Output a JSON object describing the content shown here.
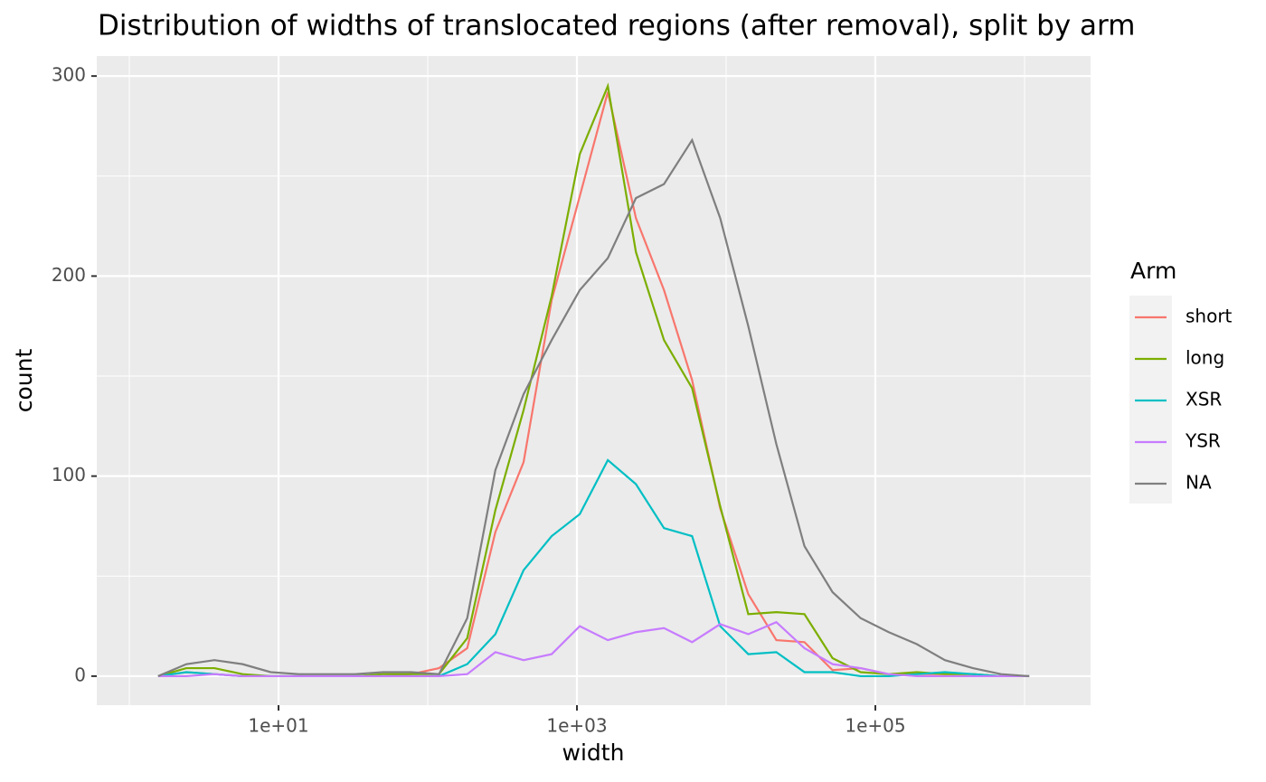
{
  "chart_data": {
    "type": "line",
    "title": "Distribution of widths of translocated regions (after removal), split by arm",
    "x_label": "width",
    "y_label": "count",
    "legend_title": "Arm",
    "xscale": "log",
    "grid": true,
    "xlim": [
      0.605,
      2770000
    ],
    "ylim": [
      -14.5,
      310
    ],
    "xticks": [
      {
        "value": 10,
        "label": "1e+01"
      },
      {
        "value": 1000,
        "label": "1e+03"
      },
      {
        "value": 100000,
        "label": "1e+05"
      }
    ],
    "xminor": [
      1,
      100,
      10000,
      1000000
    ],
    "yticks": [
      0,
      100,
      200,
      300
    ],
    "yminor": [
      50,
      150,
      250
    ],
    "x": [
      1.56,
      2.41,
      3.72,
      5.74,
      8.86,
      13.7,
      21.1,
      32.5,
      50.2,
      77.4,
      119,
      184,
      284,
      439,
      677,
      1045,
      1611,
      2485,
      3833,
      5913,
      9121,
      14070,
      21700,
      33480,
      51650,
      79680,
      122900,
      189600,
      292500,
      451200,
      696000,
      1074000
    ],
    "series": [
      {
        "name": "short",
        "color": "#F8766D",
        "values": [
          0,
          2,
          1,
          0,
          0,
          0,
          0,
          0,
          0,
          1,
          4,
          14,
          72,
          107,
          188,
          240,
          292,
          229,
          193,
          148,
          84,
          41,
          18,
          17,
          3,
          4,
          1,
          1,
          1,
          1,
          0,
          0
        ]
      },
      {
        "name": "long",
        "color": "#7CAE00",
        "values": [
          0,
          4,
          4,
          1,
          0,
          0,
          0,
          0,
          1,
          1,
          1,
          19,
          83,
          133,
          190,
          261,
          295,
          212,
          168,
          144,
          85,
          31,
          32,
          31,
          9,
          2,
          1,
          2,
          1,
          1,
          0,
          0
        ]
      },
      {
        "name": "XSR",
        "color": "#00BFC4",
        "values": [
          0,
          2,
          1,
          0,
          0,
          0,
          0,
          0,
          0,
          0,
          0,
          6,
          21,
          53,
          70,
          81,
          108,
          96,
          74,
          70,
          25,
          11,
          12,
          2,
          2,
          0,
          0,
          1,
          2,
          1,
          0,
          0
        ]
      },
      {
        "name": "YSR",
        "color": "#C77CFF",
        "values": [
          0,
          0,
          1,
          0,
          0,
          0,
          0,
          0,
          0,
          0,
          0,
          1,
          12,
          8,
          11,
          25,
          18,
          22,
          24,
          17,
          26,
          21,
          27,
          14,
          6,
          4,
          1,
          0,
          0,
          0,
          0,
          0
        ]
      },
      {
        "name": "NA",
        "color": "#7F7F7F",
        "values": [
          0,
          6,
          8,
          6,
          2,
          1,
          1,
          1,
          2,
          2,
          1,
          29,
          103,
          141,
          168,
          193,
          209,
          239,
          246,
          268,
          229,
          175,
          116,
          65,
          42,
          29,
          22,
          16,
          8,
          4,
          1,
          0
        ]
      }
    ]
  }
}
